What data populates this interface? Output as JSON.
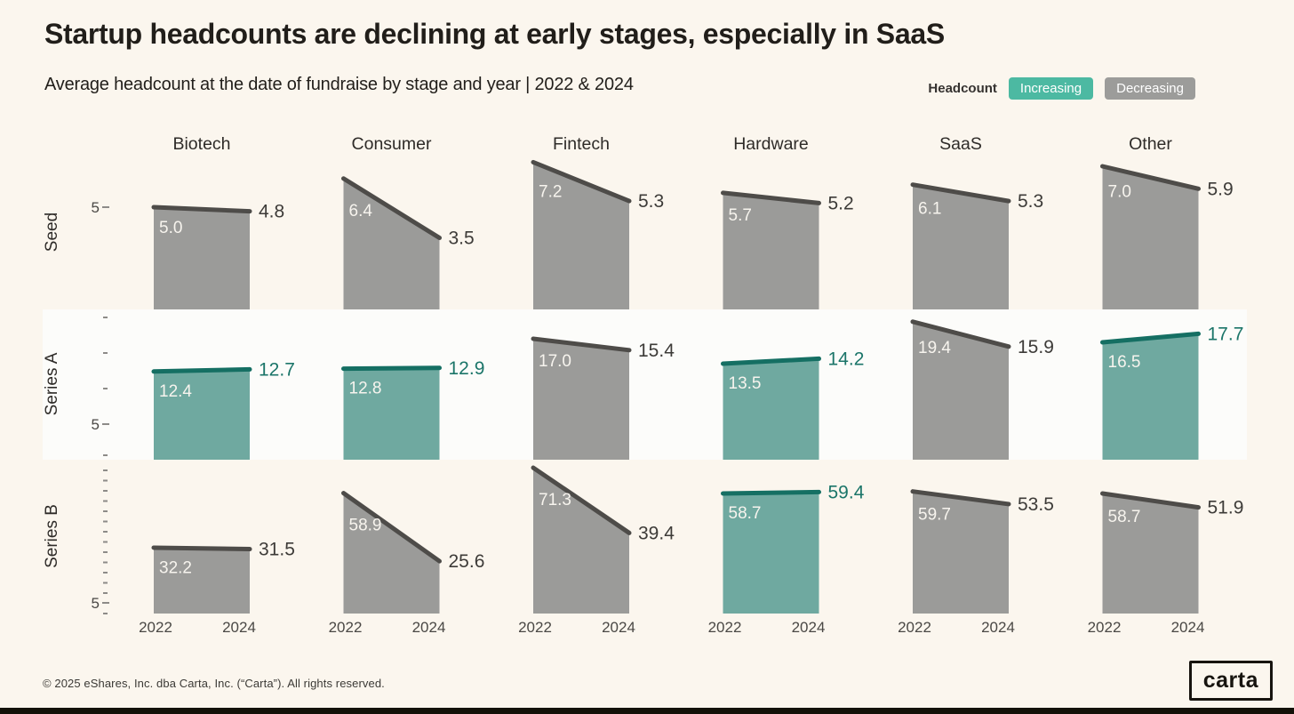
{
  "header": {
    "title": "Startup headcounts are declining at early stages, especially in SaaS",
    "subtitle": "Average headcount at the date of fundraise by stage and year | 2022 & 2024"
  },
  "legend": {
    "label": "Headcount",
    "items": [
      {
        "label": "Increasing",
        "color": "#4cb9a2"
      },
      {
        "label": "Decreasing",
        "color": "#9c9c9a"
      }
    ]
  },
  "chart_data": {
    "type": "area",
    "x": [
      "2022",
      "2024"
    ],
    "columns": [
      "Biotech",
      "Consumer",
      "Fintech",
      "Hardware",
      "SaaS",
      "Other"
    ],
    "y_tick_label": "5",
    "rows": [
      {
        "stage": "Seed",
        "values": {
          "Biotech": {
            "points": [
              5.0,
              4.8
            ],
            "trend": "decreasing"
          },
          "Consumer": {
            "points": [
              6.4,
              3.5
            ],
            "trend": "decreasing"
          },
          "Fintech": {
            "points": [
              7.2,
              5.3
            ],
            "trend": "decreasing"
          },
          "Hardware": {
            "points": [
              5.7,
              5.2
            ],
            "trend": "decreasing"
          },
          "SaaS": {
            "points": [
              6.1,
              5.3
            ],
            "trend": "decreasing"
          },
          "Other": {
            "points": [
              7.0,
              5.9
            ],
            "trend": "decreasing"
          }
        }
      },
      {
        "stage": "Series A",
        "values": {
          "Biotech": {
            "points": [
              12.4,
              12.7
            ],
            "trend": "increasing"
          },
          "Consumer": {
            "points": [
              12.8,
              12.9
            ],
            "trend": "increasing"
          },
          "Fintech": {
            "points": [
              17.0,
              15.4
            ],
            "trend": "decreasing"
          },
          "Hardware": {
            "points": [
              13.5,
              14.2
            ],
            "trend": "increasing"
          },
          "SaaS": {
            "points": [
              19.4,
              15.9
            ],
            "trend": "decreasing"
          },
          "Other": {
            "points": [
              16.5,
              17.7
            ],
            "trend": "increasing"
          }
        }
      },
      {
        "stage": "Series B",
        "values": {
          "Biotech": {
            "points": [
              32.2,
              31.5
            ],
            "trend": "decreasing"
          },
          "Consumer": {
            "points": [
              58.9,
              25.6
            ],
            "trend": "decreasing"
          },
          "Fintech": {
            "points": [
              71.3,
              39.4
            ],
            "trend": "decreasing"
          },
          "Hardware": {
            "points": [
              58.7,
              59.4
            ],
            "trend": "increasing"
          },
          "SaaS": {
            "points": [
              59.7,
              53.5
            ],
            "trend": "decreasing"
          },
          "Other": {
            "points": [
              58.7,
              51.9
            ],
            "trend": "decreasing"
          }
        }
      }
    ],
    "colors": {
      "background": "#fbf6ee",
      "series_a_band": "#fcfcfa",
      "increasing_fill": "#6fa9a0",
      "increasing_line": "#156f63",
      "increasing_label": "#1b7569",
      "decreasing_fill": "#9b9b99",
      "decreasing_line": "#4e4c49",
      "decreasing_label": "#3d3b38",
      "value_inside": "#f7f4ee",
      "axis_text": "#4a4845",
      "header_text": "#2e2b28",
      "tick": "#8d8b88"
    },
    "legend_position": "top-right",
    "grid": "off"
  },
  "footer": {
    "copyright": "© 2025 eShares, Inc. dba Carta, Inc. (“Carta”). All rights reserved.",
    "logo_text": "carta"
  }
}
